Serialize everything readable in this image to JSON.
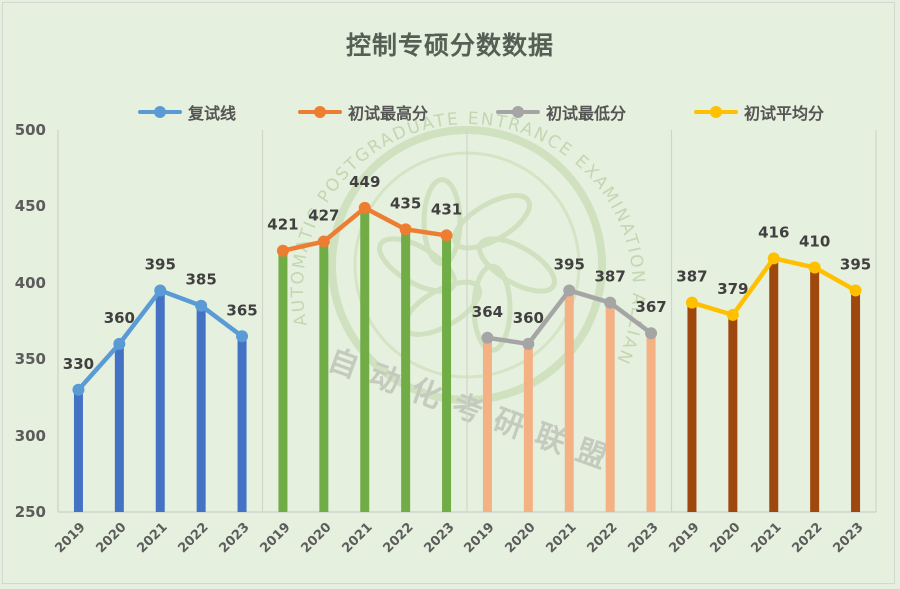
{
  "chart_data": {
    "type": "line",
    "title": "控制专硕分数数据",
    "xlabel": "",
    "ylabel": "",
    "ylim": [
      250,
      500
    ],
    "yticks": [
      250,
      300,
      350,
      400,
      450,
      500
    ],
    "grid": false,
    "legend_position": "top",
    "categories": [
      "2019",
      "2020",
      "2021",
      "2022",
      "2023"
    ],
    "series": [
      {
        "name": "复试线",
        "values": [
          330,
          360,
          395,
          385,
          365
        ],
        "line_color": "#5b9bd5",
        "bar_color": "#4472c4"
      },
      {
        "name": "初试最高分",
        "values": [
          421,
          427,
          449,
          435,
          431
        ],
        "line_color": "#ed7d31",
        "bar_color": "#70ad47"
      },
      {
        "name": "初试最低分",
        "values": [
          364,
          360,
          395,
          387,
          367
        ],
        "line_color": "#a5a5a5",
        "bar_color": "#f4b183"
      },
      {
        "name": "初试平均分",
        "values": [
          387,
          379,
          416,
          410,
          395
        ],
        "line_color": "#ffc000",
        "bar_color": "#9e480e"
      }
    ],
    "annotations": [
      "AUTOMATIC POSTGRADUATE ENTRANCE EXAMINATION ALLIANCE",
      "自动化考研联盟"
    ]
  },
  "title": "控制专硕分数数据",
  "legend": [
    {
      "label": "复试线",
      "color": "#5b9bd5"
    },
    {
      "label": "初试最高分",
      "color": "#ed7d31"
    },
    {
      "label": "初试最低分",
      "color": "#a5a5a5"
    },
    {
      "label": "初试平均分",
      "color": "#ffc000"
    }
  ],
  "yaxis": {
    "ticks": [
      "500",
      "450",
      "400",
      "350",
      "300",
      "250"
    ]
  },
  "xaxis": {
    "ticks": [
      "2019",
      "2020",
      "2021",
      "2022",
      "2023",
      "2019",
      "2020",
      "2021",
      "2022",
      "2023",
      "2019",
      "2020",
      "2021",
      "2022",
      "2023",
      "2019",
      "2020",
      "2021",
      "2022",
      "2023"
    ]
  },
  "watermark": {
    "ring_text": "AUTOMATIC POSTGRADUATE ENTRANCE EXAMINATION ALLIANCE",
    "cn_text": "自动化考研联盟"
  }
}
